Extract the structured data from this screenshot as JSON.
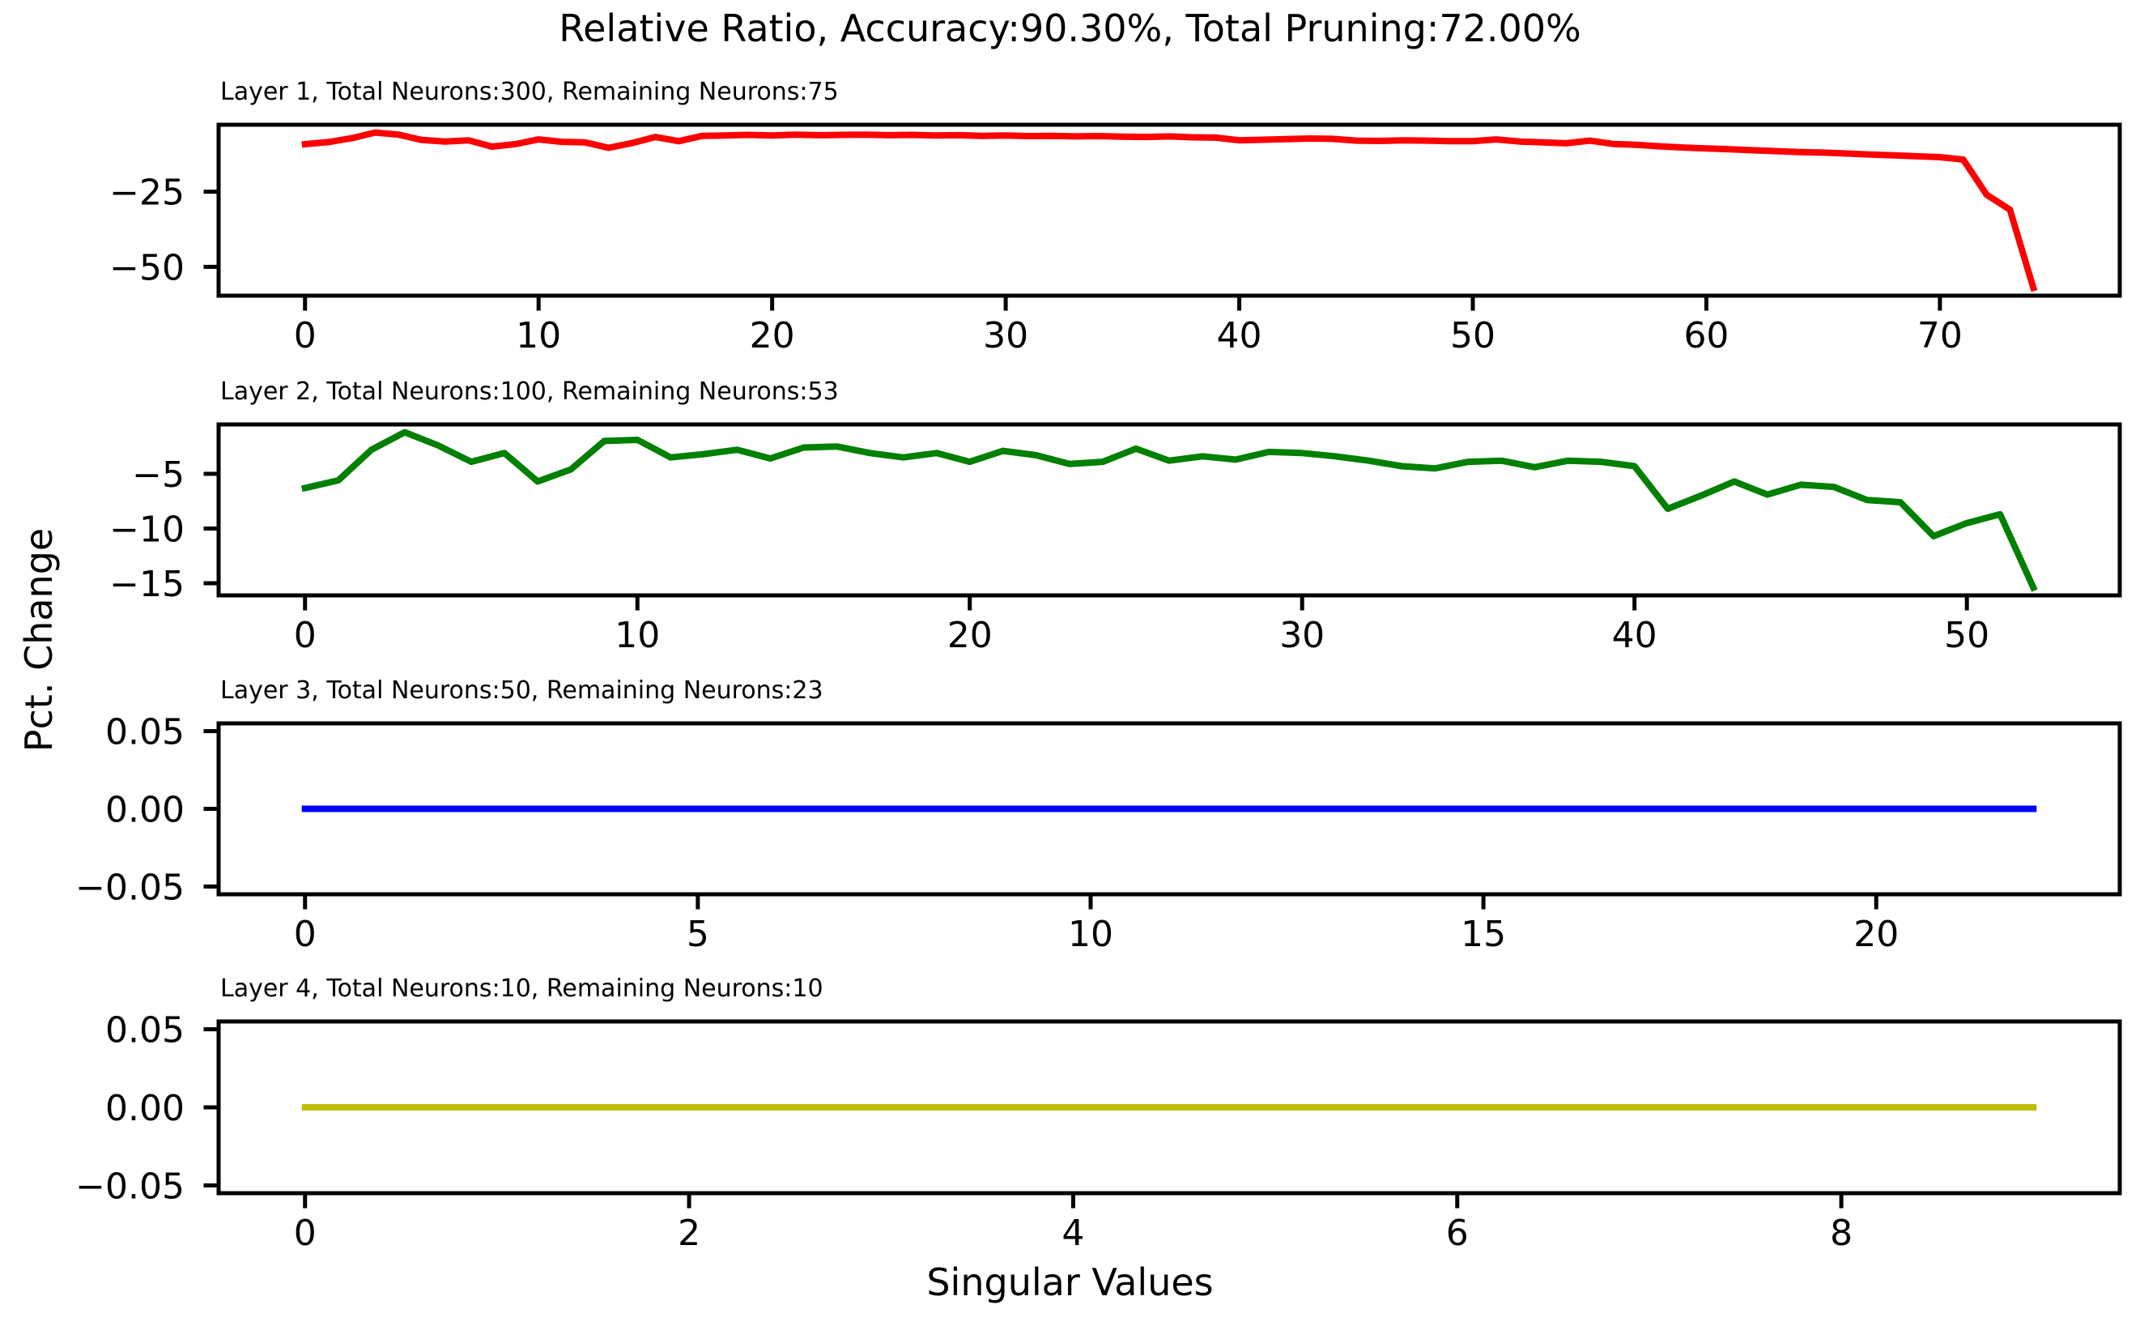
{
  "figure": {
    "title": "Relative Ratio, Accuracy:90.30%, Total Pruning:72.00%",
    "accuracy_pct": "90.30%",
    "total_pruning_pct": "72.00%",
    "xlabel": "Singular Values",
    "ylabel": "Pct. Change",
    "background_color": "#ffffff",
    "text_color": "#000000",
    "axis_color": "#000000"
  },
  "chart_data": [
    {
      "type": "line",
      "title": "Layer 1, Total Neurons:300, Remaining Neurons:75",
      "series_name": "Layer 1",
      "total_neurons": 300,
      "remaining_neurons": 75,
      "line_color": "#ff0000",
      "x_start": 0,
      "x_step": 1,
      "y": [
        -9.2,
        -8.5,
        -7.2,
        -5.3,
        -6.0,
        -7.8,
        -8.3,
        -7.9,
        -10.0,
        -9.2,
        -7.6,
        -8.4,
        -8.6,
        -10.4,
        -8.8,
        -6.8,
        -8.2,
        -6.4,
        -6.3,
        -6.1,
        -6.3,
        -6.0,
        -6.2,
        -6.1,
        -6.0,
        -6.2,
        -6.1,
        -6.3,
        -6.2,
        -6.4,
        -6.3,
        -6.5,
        -6.4,
        -6.6,
        -6.5,
        -6.7,
        -6.8,
        -6.6,
        -6.9,
        -7.0,
        -7.9,
        -7.7,
        -7.5,
        -7.3,
        -7.4,
        -8.0,
        -8.1,
        -7.9,
        -8.0,
        -8.2,
        -8.2,
        -7.6,
        -8.3,
        -8.6,
        -8.9,
        -8.0,
        -9.1,
        -9.4,
        -9.9,
        -10.3,
        -10.6,
        -10.9,
        -11.2,
        -11.5,
        -11.8,
        -12.0,
        -12.3,
        -12.6,
        -12.9,
        -13.2,
        -13.5,
        -14.3,
        -26.0,
        -31.0,
        -57.0
      ],
      "xlim": [
        -3.7,
        77.7
      ],
      "ylim": [
        -59.59,
        -2.72
      ],
      "x_ticks": [
        0,
        10,
        20,
        30,
        40,
        50,
        60,
        70
      ],
      "x_tick_labels": [
        "0",
        "10",
        "20",
        "30",
        "40",
        "50",
        "60",
        "70"
      ],
      "y_ticks": [
        -25,
        -50
      ],
      "y_tick_labels": [
        "−25",
        "−50"
      ]
    },
    {
      "type": "line",
      "title": "Layer 2, Total Neurons:100, Remaining Neurons:53",
      "series_name": "Layer 2",
      "total_neurons": 100,
      "remaining_neurons": 53,
      "line_color": "#008000",
      "x_start": 0,
      "x_step": 1,
      "y": [
        -6.3,
        -5.6,
        -2.8,
        -1.2,
        -2.4,
        -3.9,
        -3.1,
        -5.7,
        -4.6,
        -2.0,
        -1.9,
        -3.5,
        -3.2,
        -2.8,
        -3.6,
        -2.6,
        -2.5,
        -3.1,
        -3.5,
        -3.1,
        -3.9,
        -2.9,
        -3.3,
        -4.1,
        -3.9,
        -2.7,
        -3.8,
        -3.4,
        -3.7,
        -3.0,
        -3.1,
        -3.4,
        -3.8,
        -4.3,
        -4.5,
        -3.9,
        -3.8,
        -4.4,
        -3.8,
        -3.9,
        -4.3,
        -8.2,
        -7.0,
        -5.7,
        -6.9,
        -6.0,
        -6.2,
        -7.4,
        -7.6,
        -10.7,
        -9.5,
        -8.7,
        -15.4
      ],
      "xlim": [
        -2.6,
        54.6
      ],
      "ylim": [
        -16.11,
        -0.49
      ],
      "x_ticks": [
        0,
        10,
        20,
        30,
        40,
        50
      ],
      "x_tick_labels": [
        "0",
        "10",
        "20",
        "30",
        "40",
        "50"
      ],
      "y_ticks": [
        -5,
        -10,
        -15
      ],
      "y_tick_labels": [
        "−5",
        "−10",
        "−15"
      ]
    },
    {
      "type": "line",
      "title": "Layer 3, Total Neurons:50, Remaining Neurons:23",
      "series_name": "Layer 3",
      "total_neurons": 50,
      "remaining_neurons": 23,
      "line_color": "#0000ff",
      "x_start": 0,
      "x_step": 1,
      "y": [
        0,
        0,
        0,
        0,
        0,
        0,
        0,
        0,
        0,
        0,
        0,
        0,
        0,
        0,
        0,
        0,
        0,
        0,
        0,
        0,
        0,
        0,
        0
      ],
      "xlim": [
        -1.1,
        23.1
      ],
      "ylim": [
        -0.055,
        0.055
      ],
      "x_ticks": [
        0,
        5,
        10,
        15,
        20
      ],
      "x_tick_labels": [
        "0",
        "5",
        "10",
        "15",
        "20"
      ],
      "y_ticks": [
        0.05,
        0.0,
        -0.05
      ],
      "y_tick_labels": [
        "0.05",
        "0.00",
        "−0.05"
      ]
    },
    {
      "type": "line",
      "title": "Layer 4, Total Neurons:10, Remaining Neurons:10",
      "series_name": "Layer 4",
      "total_neurons": 10,
      "remaining_neurons": 10,
      "line_color": "#bfbf00",
      "x_start": 0,
      "x_step": 1,
      "y": [
        0,
        0,
        0,
        0,
        0,
        0,
        0,
        0,
        0,
        0
      ],
      "xlim": [
        -0.45,
        9.45
      ],
      "ylim": [
        -0.055,
        0.055
      ],
      "x_ticks": [
        0,
        2,
        4,
        6,
        8
      ],
      "x_tick_labels": [
        "0",
        "2",
        "4",
        "6",
        "8"
      ],
      "y_ticks": [
        0.05,
        0.0,
        -0.05
      ],
      "y_tick_labels": [
        "0.05",
        "0.00",
        "−0.05"
      ]
    }
  ]
}
